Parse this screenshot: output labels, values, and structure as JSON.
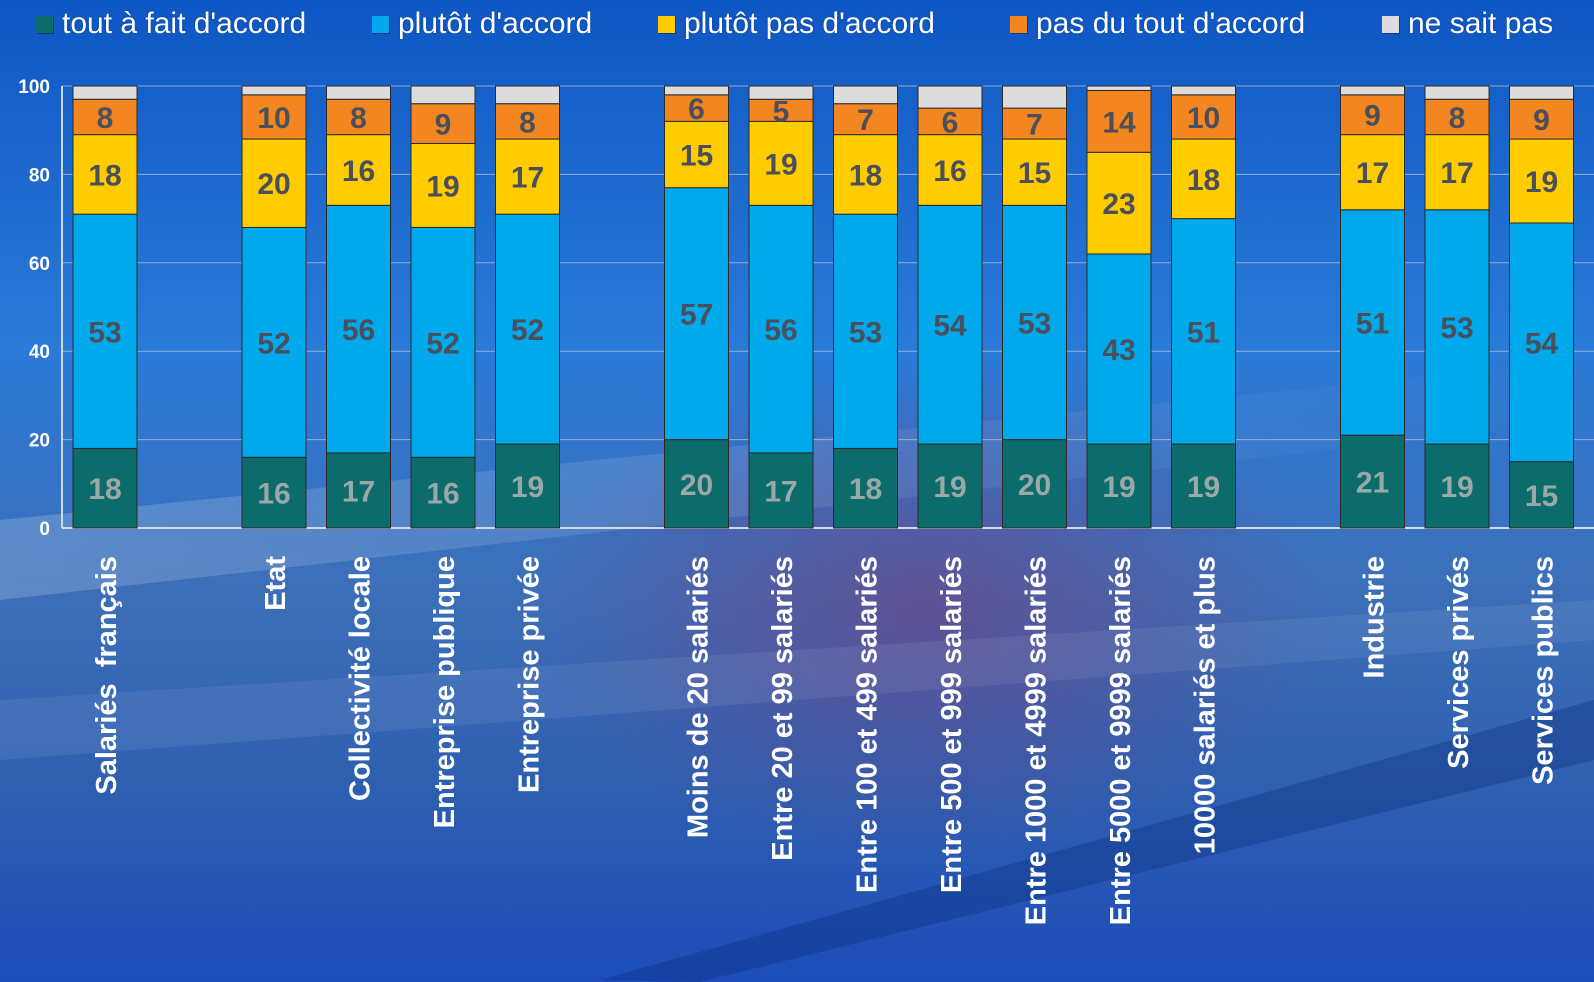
{
  "legend": [
    {
      "label": "tout à fait d'accord",
      "color": "#0c6b6b"
    },
    {
      "label": "plutôt d'accord",
      "color": "#00a8ec"
    },
    {
      "label": "plutôt pas d'accord",
      "color": "#ffcc00"
    },
    {
      "label": "pas du tout d'accord",
      "color": "#f38621"
    },
    {
      "label": "ne sait pas",
      "color": "#dcdcdc"
    }
  ],
  "chart_data": {
    "type": "bar",
    "stacked": true,
    "ylim": [
      0,
      100
    ],
    "yticks": [
      0,
      20,
      40,
      60,
      80,
      100
    ],
    "grid": true,
    "legend_position": "top",
    "groups": [
      [
        "Salariés  français"
      ],
      [
        "Etat",
        "Collectivité locale",
        "Entreprise publique",
        "Entreprise privée"
      ],
      [
        "Moins de 20 salariés",
        "Entre 20 et 99 salariés",
        "Entre 100 et 499 salariés",
        "Entre 500 et 999 salariés",
        "Entre 1000 et 4999 salariés",
        "Entre 5000 et 9999 salariés",
        "10000 salariés et plus"
      ],
      [
        "Industrie",
        "Services privés",
        "Services publics"
      ]
    ],
    "categories": [
      "Salariés  français",
      "Etat",
      "Collectivité locale",
      "Entreprise publique",
      "Entreprise privée",
      "Moins de 20 salariés",
      "Entre 20 et 99 salariés",
      "Entre 100 et 499 salariés",
      "Entre 500 et 999 salariés",
      "Entre 1000 et 4999 salariés",
      "Entre 5000 et 9999 salariés",
      "10000 salariés et plus",
      "Industrie",
      "Services privés",
      "Services publics"
    ],
    "series": [
      {
        "name": "tout à fait d'accord",
        "color": "#0c6b6b",
        "label_color": "#9aa8a8",
        "values": [
          18,
          16,
          17,
          16,
          19,
          20,
          17,
          18,
          19,
          20,
          19,
          19,
          21,
          19,
          15
        ]
      },
      {
        "name": "plutôt d'accord",
        "color": "#00a8ec",
        "label_color": "#4a4f5a",
        "values": [
          53,
          52,
          56,
          52,
          52,
          57,
          56,
          53,
          54,
          53,
          43,
          51,
          51,
          53,
          54
        ]
      },
      {
        "name": "plutôt pas d'accord",
        "color": "#ffcc00",
        "label_color": "#4a4f5a",
        "values": [
          18,
          20,
          16,
          19,
          17,
          15,
          19,
          18,
          16,
          15,
          23,
          18,
          17,
          17,
          19
        ]
      },
      {
        "name": "pas du tout d'accord",
        "color": "#f38621",
        "label_color": "#4a4f5a",
        "values": [
          8,
          10,
          8,
          9,
          8,
          6,
          5,
          7,
          6,
          7,
          14,
          10,
          9,
          8,
          9
        ]
      },
      {
        "name": "ne sait pas",
        "color": "#dcdcdc",
        "label_color": "#4a4f5a",
        "values": [
          3,
          2,
          3,
          4,
          4,
          2,
          3,
          4,
          5,
          5,
          1,
          2,
          2,
          3,
          3
        ]
      }
    ],
    "labeled_series": [
      0,
      1,
      2,
      3
    ]
  }
}
